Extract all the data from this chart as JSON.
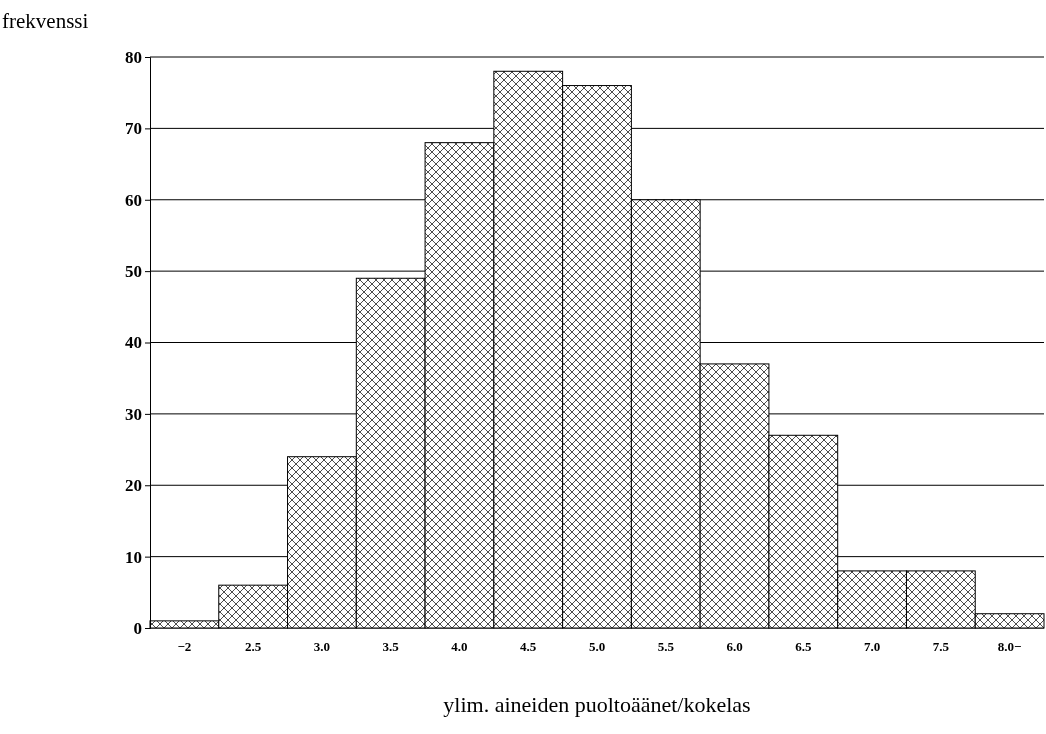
{
  "chart_data": {
    "type": "bar",
    "xlabel": "ylim. aineiden puoltoäänet/kokelas",
    "ylabel": "frekvenssi",
    "categories": [
      "−2",
      "2.5",
      "3.0",
      "3.5",
      "4.0",
      "4.5",
      "5.0",
      "5.5",
      "6.0",
      "6.5",
      "7.0",
      "7.5",
      "8.0−"
    ],
    "values": [
      1,
      6,
      24,
      49,
      68,
      78,
      76,
      60,
      37,
      27,
      8,
      8,
      2
    ],
    "color": "#000000",
    "ylim": [
      0,
      80
    ],
    "yticks": [
      0,
      10,
      20,
      30,
      40,
      50,
      60,
      70,
      80
    ],
    "grid": "y"
  }
}
